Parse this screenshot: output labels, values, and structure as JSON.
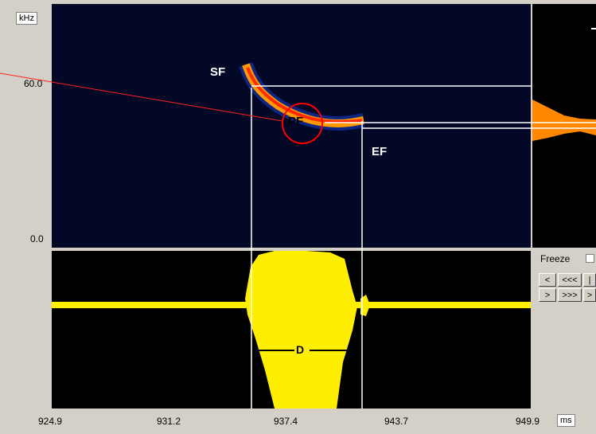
{
  "y_axis": {
    "unit": "kHz",
    "ticks": [
      "60.0",
      "0.0"
    ]
  },
  "x_axis": {
    "unit": "ms",
    "ticks": [
      "924.9",
      "931.2",
      "937.4",
      "943.7",
      "949.9"
    ]
  },
  "annotations": {
    "start_freq": "SF",
    "peak_freq": "PF",
    "end_freq": "EF",
    "duration": "D"
  },
  "controls": {
    "freeze_label": "Freeze",
    "buttons_row1": [
      "<",
      "<<<",
      "|"
    ],
    "buttons_row2": [
      ">",
      ">>>",
      ">"
    ]
  },
  "colors": {
    "spectrogram_bg": "#020826",
    "waveform": "#ffee00",
    "marker_line": "#ff0000",
    "cursor_line": "#ffffff",
    "spectrum": "#ff8800"
  }
}
